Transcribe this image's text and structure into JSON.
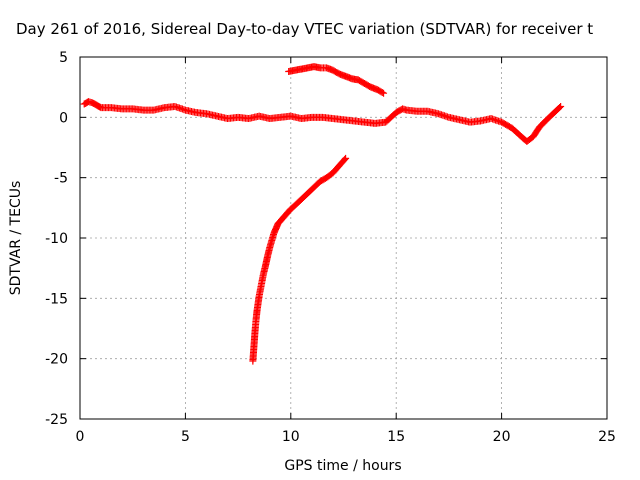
{
  "chart_data": {
    "type": "scatter",
    "title": "Day 261 of 2016, Sidereal Day-to-day VTEC variation (SDTVAR) for receiver t",
    "xlabel": "GPS time / hours",
    "ylabel": "SDTVAR / TECUs",
    "xlim": [
      0,
      25
    ],
    "ylim": [
      -25,
      5
    ],
    "xticks": [
      "0",
      "5",
      "10",
      "15",
      "20",
      "25"
    ],
    "yticks": [
      "5",
      "0",
      "-5",
      "-10",
      "-15",
      "-20",
      "-25"
    ],
    "grid": true,
    "legend": "none",
    "marker": "plus",
    "color": "#ff0000",
    "series": [
      {
        "points": [
          [
            0.2,
            1.1
          ],
          [
            0.4,
            1.3
          ],
          [
            0.6,
            1.2
          ],
          [
            0.8,
            1.0
          ],
          [
            1.0,
            0.8
          ],
          [
            1.5,
            0.8
          ],
          [
            2.0,
            0.7
          ],
          [
            2.5,
            0.7
          ],
          [
            3.0,
            0.6
          ],
          [
            3.5,
            0.6
          ],
          [
            4.0,
            0.8
          ],
          [
            4.5,
            0.9
          ],
          [
            5.0,
            0.6
          ],
          [
            5.5,
            0.4
          ],
          [
            6.0,
            0.3
          ],
          [
            6.5,
            0.1
          ],
          [
            7.0,
            -0.1
          ],
          [
            7.5,
            0.0
          ],
          [
            8.0,
            -0.1
          ],
          [
            8.5,
            0.1
          ],
          [
            9.0,
            -0.1
          ],
          [
            9.5,
            0.0
          ],
          [
            10.0,
            0.1
          ],
          [
            10.5,
            -0.1
          ],
          [
            11.0,
            0.0
          ],
          [
            11.5,
            0.0
          ],
          [
            12.0,
            -0.1
          ],
          [
            12.5,
            -0.2
          ],
          [
            13.0,
            -0.3
          ],
          [
            13.5,
            -0.4
          ],
          [
            14.0,
            -0.5
          ],
          [
            14.5,
            -0.4
          ],
          [
            15.0,
            0.4
          ],
          [
            15.3,
            0.7
          ],
          [
            15.5,
            0.6
          ],
          [
            16.0,
            0.5
          ],
          [
            16.5,
            0.5
          ],
          [
            17.0,
            0.3
          ],
          [
            17.5,
            0.0
          ],
          [
            18.0,
            -0.2
          ],
          [
            18.5,
            -0.4
          ],
          [
            19.0,
            -0.3
          ],
          [
            19.5,
            -0.1
          ],
          [
            20.0,
            -0.4
          ],
          [
            20.5,
            -0.9
          ],
          [
            21.0,
            -1.7
          ],
          [
            21.2,
            -2.0
          ],
          [
            21.5,
            -1.6
          ],
          [
            21.8,
            -0.8
          ],
          [
            22.2,
            -0.1
          ],
          [
            22.5,
            0.4
          ],
          [
            22.8,
            0.9
          ]
        ]
      },
      {
        "points": [
          [
            9.9,
            3.8
          ],
          [
            10.2,
            3.9
          ],
          [
            10.5,
            4.0
          ],
          [
            10.8,
            4.1
          ],
          [
            11.1,
            4.2
          ],
          [
            11.4,
            4.1
          ],
          [
            11.7,
            4.1
          ],
          [
            12.0,
            3.9
          ],
          [
            12.3,
            3.6
          ],
          [
            12.6,
            3.4
          ],
          [
            12.9,
            3.2
          ],
          [
            13.2,
            3.1
          ],
          [
            13.5,
            2.8
          ],
          [
            13.8,
            2.5
          ],
          [
            14.1,
            2.3
          ],
          [
            14.4,
            2.0
          ]
        ]
      },
      {
        "points": [
          [
            8.2,
            -20.2
          ],
          [
            8.25,
            -19.0
          ],
          [
            8.3,
            -17.8
          ],
          [
            8.35,
            -16.8
          ],
          [
            8.4,
            -16.0
          ],
          [
            8.5,
            -14.8
          ],
          [
            8.6,
            -13.9
          ],
          [
            8.7,
            -13.0
          ],
          [
            8.8,
            -12.3
          ],
          [
            8.9,
            -11.5
          ],
          [
            9.0,
            -10.8
          ],
          [
            9.1,
            -10.2
          ],
          [
            9.2,
            -9.6
          ],
          [
            9.3,
            -9.2
          ],
          [
            9.4,
            -8.8
          ],
          [
            9.6,
            -8.4
          ],
          [
            9.8,
            -8.0
          ],
          [
            10.0,
            -7.6
          ],
          [
            10.2,
            -7.3
          ],
          [
            10.5,
            -6.8
          ],
          [
            10.8,
            -6.3
          ],
          [
            11.1,
            -5.8
          ],
          [
            11.4,
            -5.3
          ],
          [
            11.7,
            -5.0
          ],
          [
            12.0,
            -4.6
          ],
          [
            12.3,
            -4.0
          ],
          [
            12.6,
            -3.4
          ]
        ]
      }
    ]
  }
}
